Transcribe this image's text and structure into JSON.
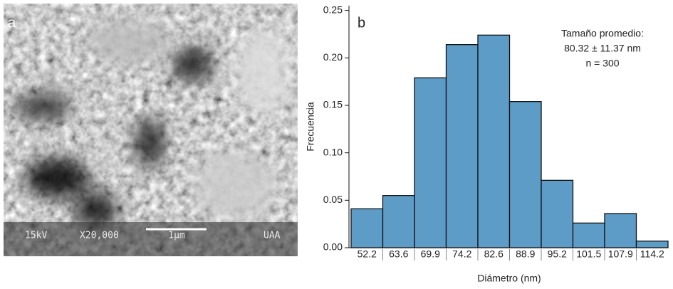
{
  "image_panel": {
    "label": "a",
    "overlay": [
      "15kV",
      "X20,000",
      "1µm",
      "UAA"
    ]
  },
  "chart_data": {
    "type": "bar",
    "panel_label": "b",
    "annotations": [
      "Tamaño promedio:",
      "80.32 ± 11.37 nm",
      "n = 300"
    ],
    "x_label": "Diámetro (nm)",
    "y_label": "Frecuencia",
    "categories": [
      "52.2",
      "63.6",
      "69.9",
      "74.2",
      "82.6",
      "88.9",
      "95.2",
      "101.5",
      "107.9",
      "114.2"
    ],
    "values": [
      0.041,
      0.055,
      0.179,
      0.214,
      0.224,
      0.154,
      0.071,
      0.026,
      0.036,
      0.007
    ],
    "color": "#5e9cc8",
    "ylim": [
      0,
      0.255
    ],
    "yticks": [
      {
        "value": 0,
        "label": "0.00"
      },
      0.05,
      {
        "value": 0.1,
        "label": "0.10"
      },
      0.15,
      {
        "value": 0.2,
        "label": "0.20"
      },
      0.25
    ]
  }
}
